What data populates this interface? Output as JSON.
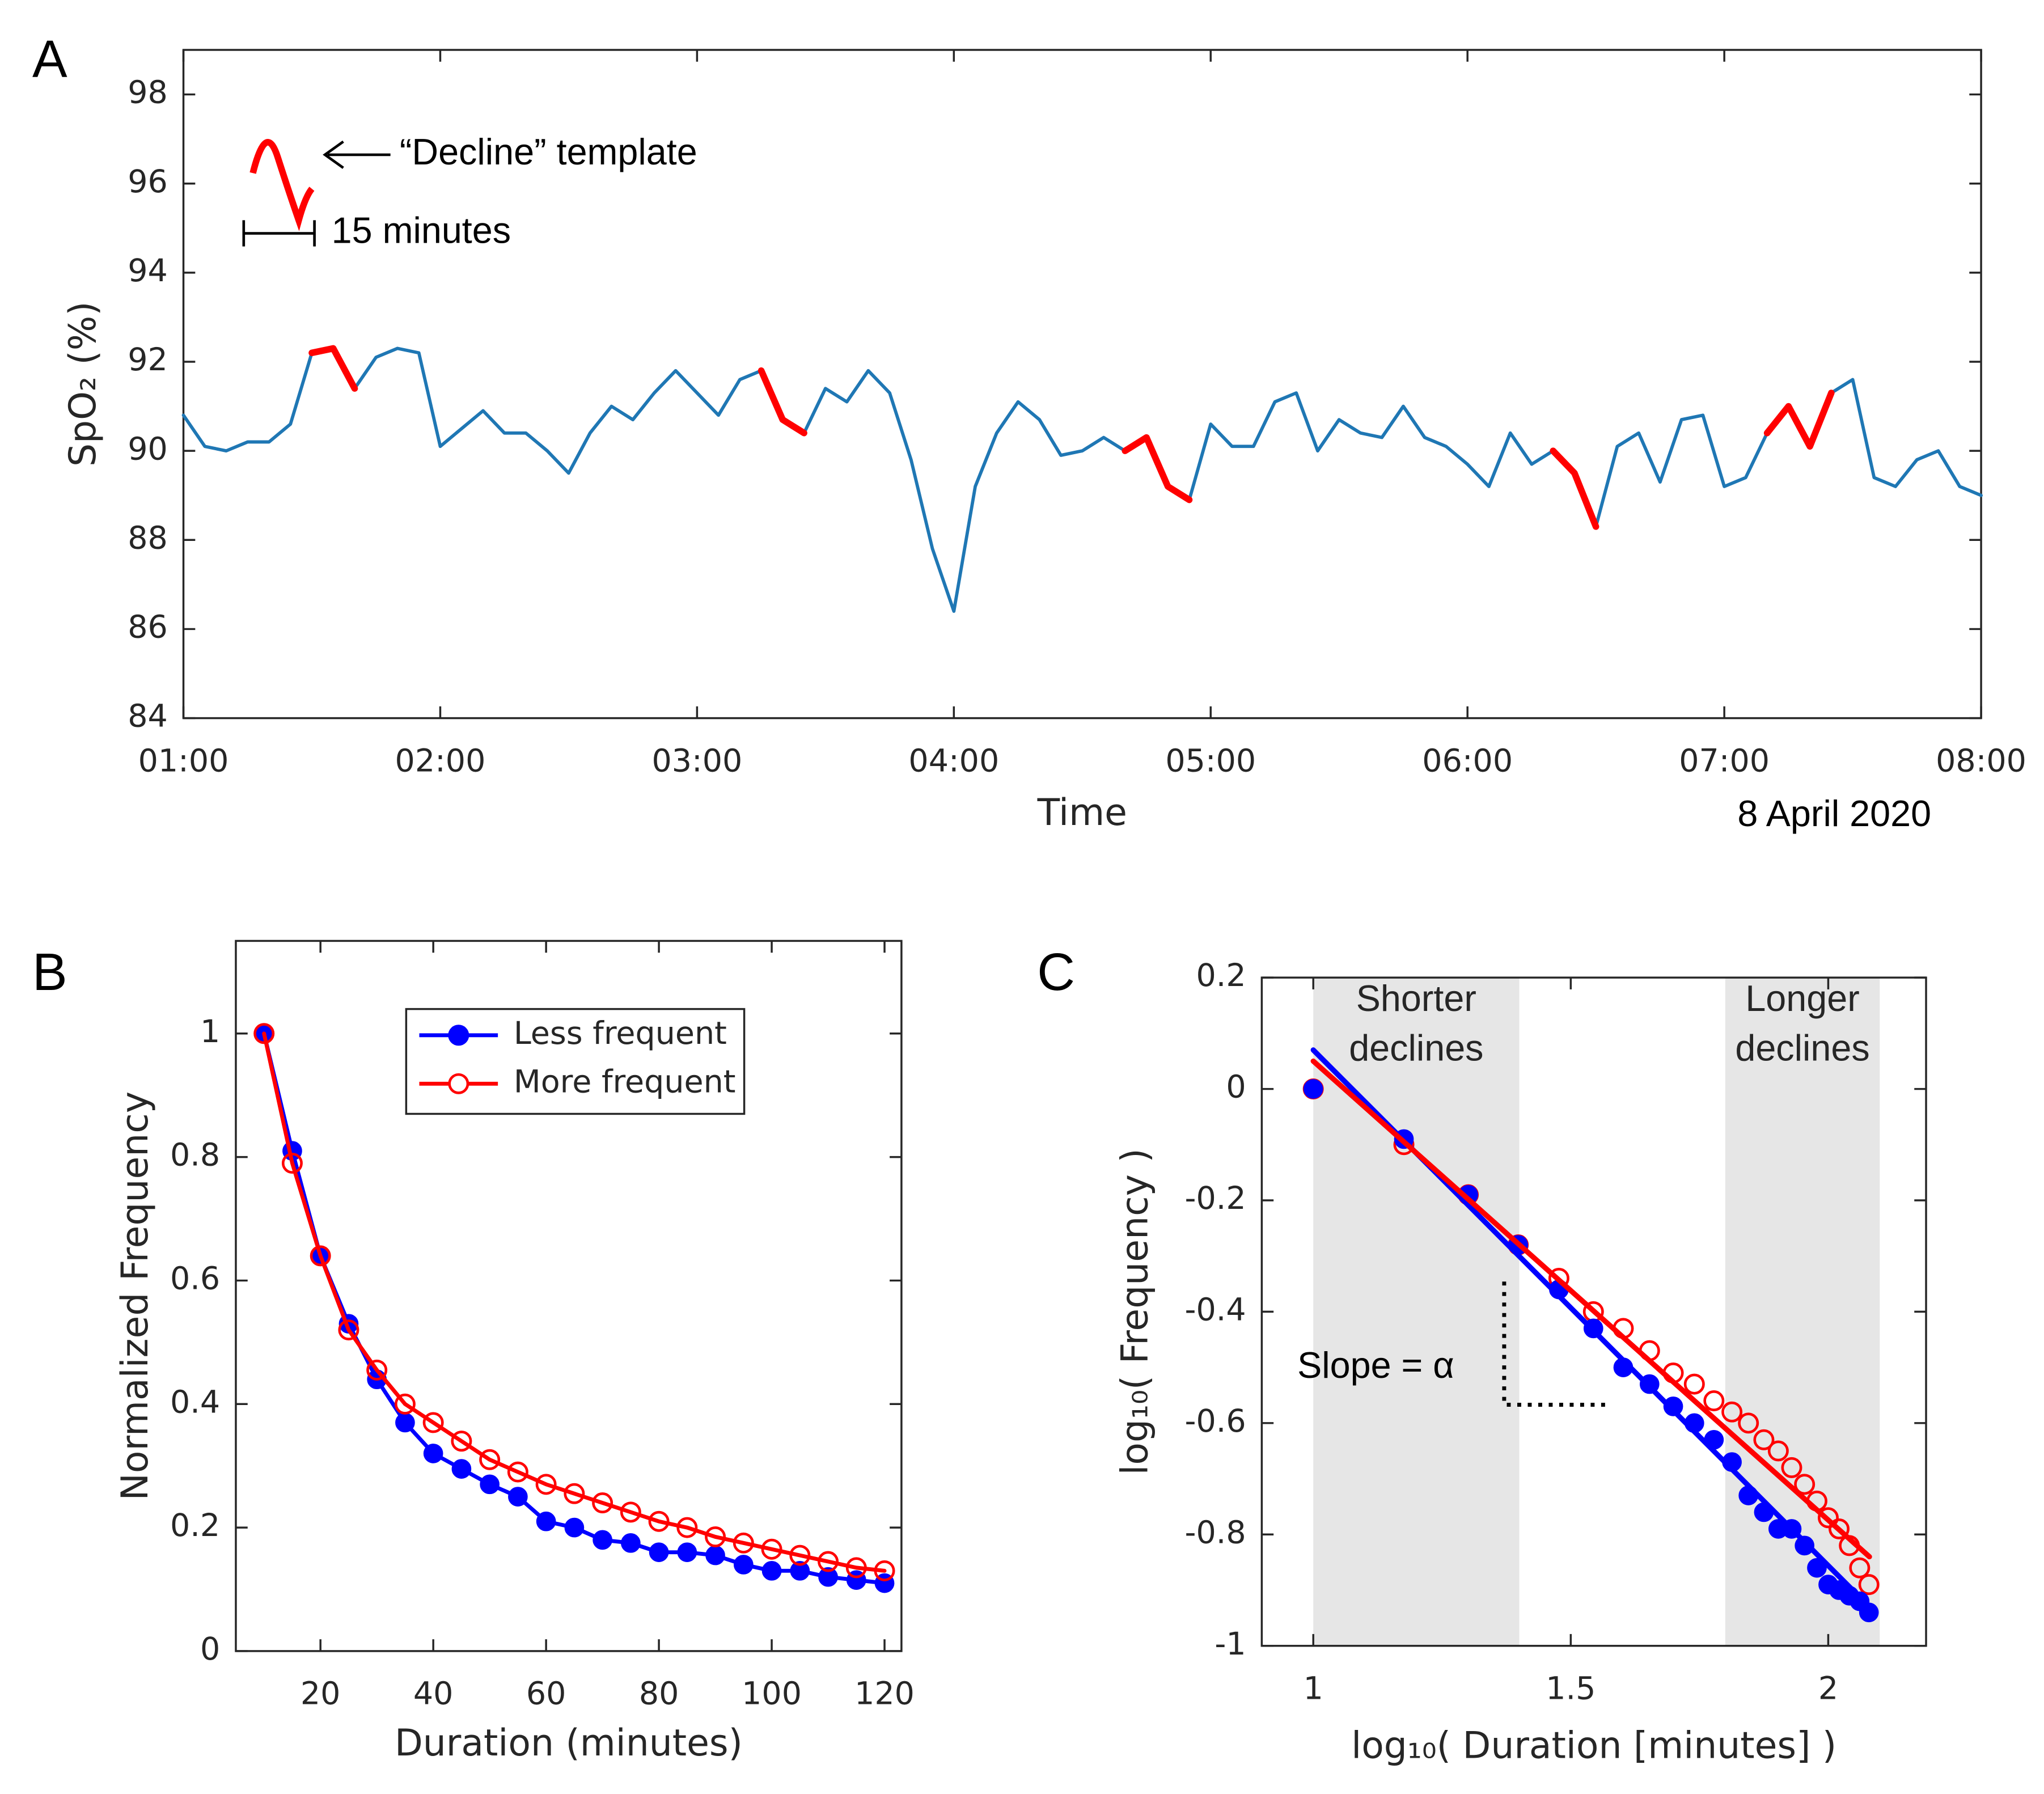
{
  "chart_data": [
    {
      "type": "line",
      "label": "A",
      "ylabel": "SpO₂ (%)",
      "xlabel": "Time",
      "annotations": [
        "“Decline” template",
        "15 minutes",
        "8 April 2020"
      ],
      "xlim": [
        "01:00",
        "08:00"
      ],
      "xticks": [
        "01:00",
        "02:00",
        "03:00",
        "04:00",
        "05:00",
        "06:00",
        "07:00",
        "08:00"
      ],
      "ylim": [
        84,
        99
      ],
      "yticks": [
        84,
        86,
        88,
        90,
        92,
        94,
        96,
        98
      ],
      "x": [
        "01:00",
        "01:05",
        "01:10",
        "01:15",
        "01:20",
        "01:25",
        "01:30",
        "01:35",
        "01:40",
        "01:45",
        "01:50",
        "01:55",
        "02:00",
        "02:05",
        "02:10",
        "02:15",
        "02:20",
        "02:25",
        "02:30",
        "02:35",
        "02:40",
        "02:45",
        "02:50",
        "02:55",
        "03:00",
        "03:05",
        "03:10",
        "03:15",
        "03:20",
        "03:25",
        "03:30",
        "03:35",
        "03:40",
        "03:45",
        "03:50",
        "03:55",
        "04:00",
        "04:05",
        "04:10",
        "04:15",
        "04:20",
        "04:25",
        "04:30",
        "04:35",
        "04:40",
        "04:45",
        "04:50",
        "04:55",
        "05:00",
        "05:05",
        "05:10",
        "05:15",
        "05:20",
        "05:25",
        "05:30",
        "05:35",
        "05:40",
        "05:45",
        "05:50",
        "05:55",
        "06:00",
        "06:05",
        "06:10",
        "06:15",
        "06:20",
        "06:25",
        "06:30",
        "06:35",
        "06:40",
        "06:45",
        "06:50",
        "06:55",
        "07:00",
        "07:05",
        "07:10",
        "07:15",
        "07:20",
        "07:25",
        "07:30",
        "07:35",
        "07:40",
        "07:45",
        "07:50",
        "07:55",
        "08:00"
      ],
      "series": [
        {
          "color": "#1f77b4",
          "values": [
            90.8,
            90.1,
            90.0,
            90.2,
            90.2,
            90.6,
            92.2,
            92.3,
            91.4,
            92.1,
            92.3,
            92.2,
            90.1,
            90.5,
            90.9,
            90.4,
            90.4,
            90.0,
            89.5,
            90.4,
            91.0,
            90.7,
            91.3,
            91.8,
            91.3,
            90.8,
            91.6,
            91.8,
            90.7,
            90.4,
            91.4,
            91.1,
            91.8,
            91.3,
            89.8,
            87.8,
            86.4,
            89.2,
            90.4,
            91.1,
            90.7,
            89.9,
            90.0,
            90.3,
            90.0,
            90.3,
            89.2,
            88.9,
            90.6,
            90.1,
            90.1,
            91.1,
            91.3,
            90.0,
            90.7,
            90.4,
            90.3,
            91.0,
            90.3,
            90.1,
            89.7,
            89.2,
            90.4,
            89.7,
            90.0,
            89.5,
            88.3,
            90.1,
            90.4,
            89.3,
            90.7,
            90.8,
            89.2,
            89.4,
            90.4,
            91.0,
            90.1,
            91.3,
            91.6,
            89.4,
            89.2,
            89.8,
            90.0,
            89.2,
            89.0
          ]
        },
        {
          "color": "#ff0000",
          "values": [
            null,
            null,
            null,
            null,
            null,
            null,
            92.2,
            92.3,
            91.4,
            null,
            null,
            null,
            null,
            null,
            null,
            null,
            null,
            null,
            null,
            null,
            null,
            null,
            null,
            null,
            null,
            null,
            null,
            91.8,
            90.7,
            90.4,
            null,
            null,
            null,
            null,
            null,
            null,
            null,
            null,
            null,
            null,
            null,
            null,
            null,
            null,
            90.0,
            90.3,
            89.2,
            88.9,
            null,
            null,
            null,
            null,
            null,
            null,
            null,
            null,
            null,
            null,
            null,
            null,
            null,
            null,
            null,
            null,
            90.0,
            89.5,
            88.3,
            null,
            null,
            null,
            null,
            null,
            null,
            null,
            90.4,
            91.0,
            90.1,
            91.3,
            null,
            null,
            null,
            null,
            null,
            null,
            null
          ]
        }
      ]
    },
    {
      "type": "line",
      "label": "B",
      "ylabel": "Normalized Frequency",
      "xlabel": "Duration (minutes)",
      "xlim": [
        5,
        123
      ],
      "xticks": [
        20,
        40,
        60,
        80,
        100,
        120
      ],
      "ylim": [
        0,
        1.15
      ],
      "yticks": [
        0,
        0.2,
        0.4,
        0.6,
        0.8,
        1
      ],
      "legend": "upper right",
      "x": [
        10,
        15,
        20,
        25,
        30,
        35,
        40,
        45,
        50,
        55,
        60,
        65,
        70,
        75,
        80,
        85,
        90,
        95,
        100,
        105,
        110,
        115,
        120
      ],
      "series": [
        {
          "name": "Less frequent",
          "color": "#0000ff",
          "marker": "filled",
          "values": [
            1,
            0.81,
            0.64,
            0.53,
            0.44,
            0.37,
            0.32,
            0.295,
            0.27,
            0.25,
            0.21,
            0.2,
            0.18,
            0.175,
            0.16,
            0.16,
            0.155,
            0.14,
            0.13,
            0.13,
            0.12,
            0.115,
            0.11
          ]
        },
        {
          "name": "More frequent",
          "color": "#ff0000",
          "marker": "open",
          "values": [
            1,
            0.79,
            0.64,
            0.52,
            0.455,
            0.4,
            0.37,
            0.34,
            0.31,
            0.29,
            0.27,
            0.255,
            0.24,
            0.225,
            0.21,
            0.2,
            0.185,
            0.175,
            0.165,
            0.155,
            0.145,
            0.135,
            0.13
          ]
        }
      ]
    },
    {
      "type": "scatter",
      "label": "C",
      "ylabel": "log₁₀( Frequency )",
      "xlabel": "log₁₀( Duration [minutes] )",
      "annotations": [
        "Slope = α"
      ],
      "xlim": [
        0.9,
        2.19
      ],
      "xticks": [
        1,
        1.5,
        2
      ],
      "ylim": [
        -1,
        0.2
      ],
      "yticks": [
        -1,
        -0.8,
        -0.6,
        -0.4,
        -0.2,
        0,
        0.2
      ],
      "shaded": [
        {
          "range": [
            1,
            1.4
          ],
          "labels": [
            "Shorter",
            "declines"
          ]
        },
        {
          "range": [
            1.8,
            2.1
          ],
          "labels": [
            "Longer",
            "declines"
          ]
        }
      ],
      "x": [
        1,
        1.176,
        1.301,
        1.398,
        1.477,
        1.544,
        1.602,
        1.653,
        1.699,
        1.74,
        1.778,
        1.813,
        1.845,
        1.875,
        1.903,
        1.929,
        1.954,
        1.978,
        2,
        2.021,
        2.041,
        2.061,
        2.079
      ],
      "series": [
        {
          "color": "#ff0000",
          "marker": "open",
          "values": [
            0,
            -0.1,
            -0.19,
            -0.28,
            -0.34,
            -0.4,
            -0.43,
            -0.47,
            -0.51,
            -0.53,
            -0.56,
            -0.58,
            -0.6,
            -0.63,
            -0.65,
            -0.68,
            -0.71,
            -0.74,
            -0.77,
            -0.79,
            -0.82,
            -0.86,
            -0.89
          ]
        },
        {
          "color": "#0000ff",
          "marker": "filled",
          "values": [
            0,
            -0.09,
            -0.19,
            -0.28,
            -0.36,
            -0.43,
            -0.5,
            -0.53,
            -0.57,
            -0.6,
            -0.63,
            -0.67,
            -0.73,
            -0.76,
            -0.79,
            -0.79,
            -0.82,
            -0.86,
            -0.89,
            -0.9,
            -0.91,
            -0.92,
            -0.94
          ]
        }
      ],
      "fits": [
        {
          "color": "#0000ff",
          "x": [
            1,
            2.08
          ],
          "values": [
            0.07,
            -0.93
          ]
        },
        {
          "color": "#ff0000",
          "x": [
            1,
            2.08
          ],
          "values": [
            0.05,
            -0.84
          ]
        }
      ]
    }
  ]
}
